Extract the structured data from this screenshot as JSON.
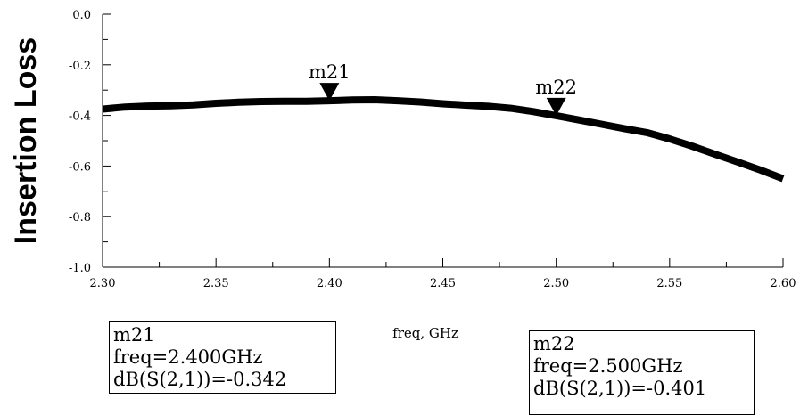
{
  "chart_data": {
    "type": "line",
    "xlabel": "freq, GHz",
    "ylabel": "Insertion Loss",
    "xlim": [
      2.3,
      2.6
    ],
    "ylim": [
      -1.0,
      0.0
    ],
    "x_ticks": [
      "2.30",
      "2.35",
      "2.40",
      "2.45",
      "2.50",
      "2.55",
      "2.60"
    ],
    "y_ticks": [
      "0.0",
      "-0.2",
      "-0.4",
      "-0.6",
      "-0.8",
      "-1.0"
    ],
    "grid": false,
    "series": [
      {
        "x": [
          2.3,
          2.31,
          2.32,
          2.33,
          2.34,
          2.35,
          2.36,
          2.37,
          2.38,
          2.39,
          2.4,
          2.41,
          2.42,
          2.43,
          2.44,
          2.45,
          2.46,
          2.47,
          2.48,
          2.49,
          2.5,
          2.51,
          2.52,
          2.53,
          2.54,
          2.55,
          2.56,
          2.57,
          2.58,
          2.59,
          2.6
        ],
        "values": [
          -0.375,
          -0.367,
          -0.363,
          -0.362,
          -0.358,
          -0.352,
          -0.348,
          -0.345,
          -0.344,
          -0.344,
          -0.342,
          -0.339,
          -0.338,
          -0.342,
          -0.347,
          -0.354,
          -0.359,
          -0.364,
          -0.372,
          -0.385,
          -0.401,
          -0.418,
          -0.435,
          -0.452,
          -0.468,
          -0.493,
          -0.522,
          -0.553,
          -0.584,
          -0.616,
          -0.65
        ]
      }
    ],
    "markers": [
      {
        "name": "m21",
        "x": 2.4,
        "y": -0.342,
        "freq_text": "freq=2.400GHz",
        "value_text": "dB(S(2,1))=-0.342"
      },
      {
        "name": "m22",
        "x": 2.5,
        "y": -0.401,
        "freq_text": "freq=2.500GHz",
        "value_text": "dB(S(2,1))=-0.401"
      }
    ]
  }
}
